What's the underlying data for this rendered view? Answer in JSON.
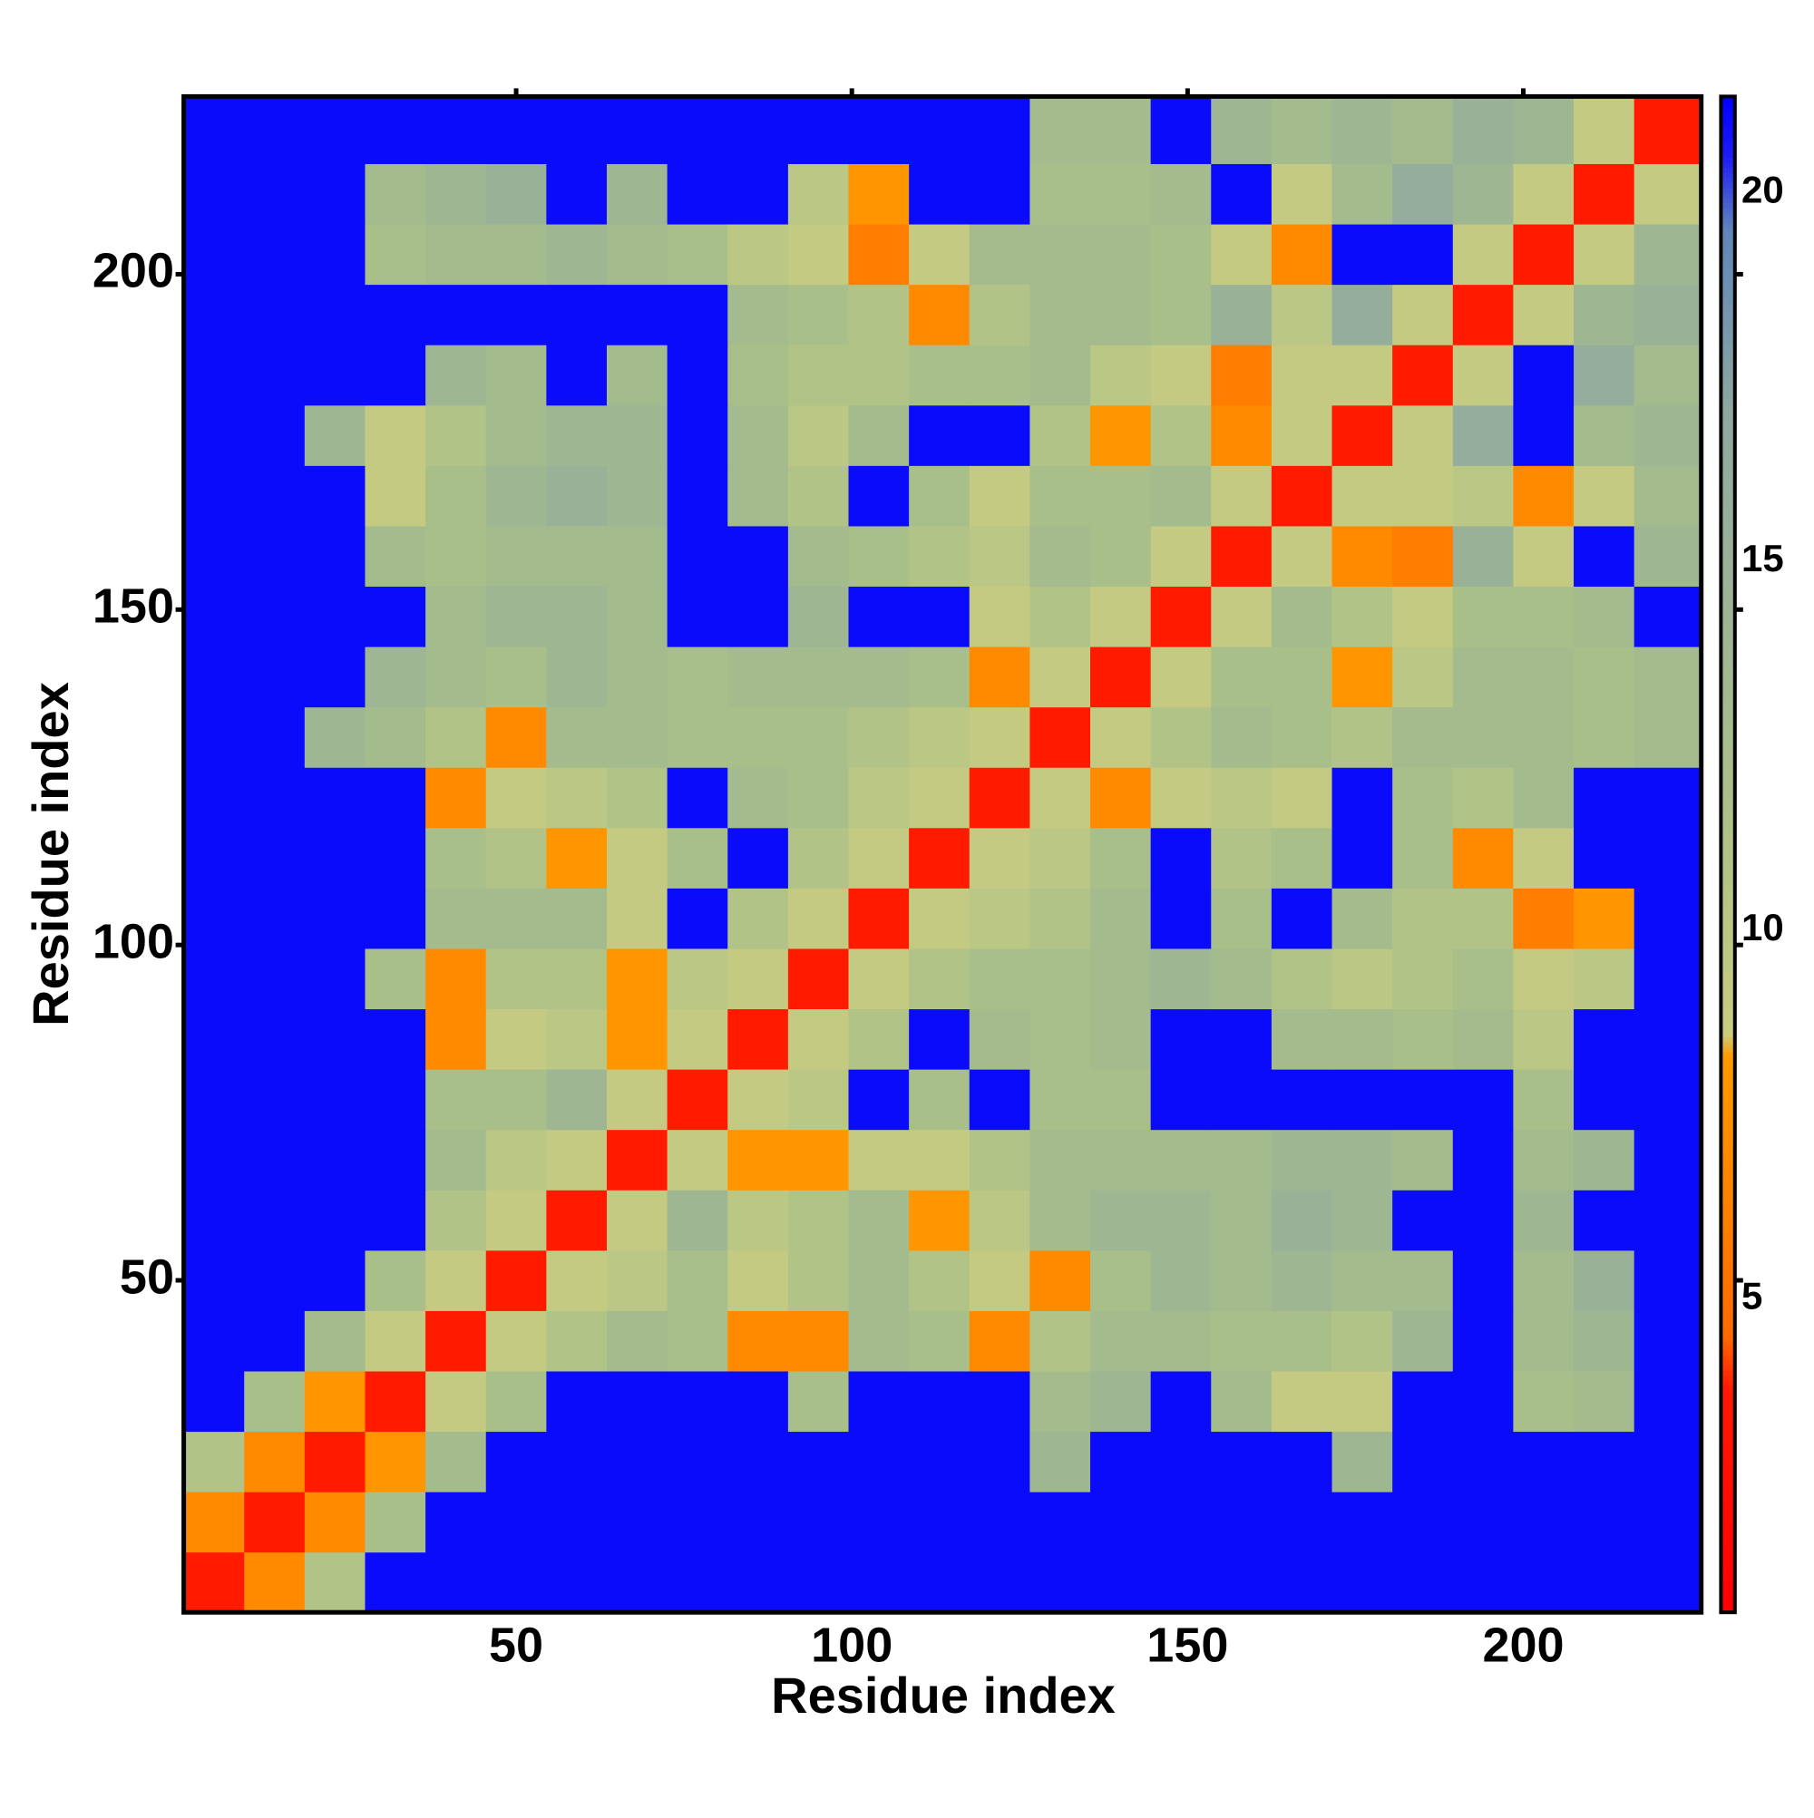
{
  "chart_data": {
    "type": "heatmap",
    "xlabel": "Residue index",
    "ylabel": "Residue index",
    "xlim": [
      0.5,
      226.5
    ],
    "ylim": [
      0.5,
      226.5
    ],
    "xticks": [
      50,
      100,
      150,
      200
    ],
    "yticks": [
      50,
      100,
      150,
      200
    ],
    "colorbar_lim": [
      0.75,
      21.3
    ],
    "colorbar_ticks": [
      5,
      10,
      15,
      20
    ],
    "colorscale": [
      [
        0.75,
        "#ff0000"
      ],
      [
        3.8,
        "#ff1a00"
      ],
      [
        4.5,
        "#ff6a00"
      ],
      [
        8.3,
        "#ff9a00"
      ],
      [
        8.6,
        "#c8cc80"
      ],
      [
        12,
        "#a9bf8a"
      ],
      [
        17,
        "#8fa9a0"
      ],
      [
        19.5,
        "#5f86ba"
      ],
      [
        20.5,
        "#1c1cf5"
      ],
      [
        21.3,
        "#0000ff"
      ]
    ],
    "xbins": [
      0.5,
      9.5,
      18.5,
      27.5,
      36.5,
      45.5,
      54.5,
      63.5,
      72.5,
      81.5,
      90.5,
      99.5,
      108.5,
      117.5,
      126.5,
      135.5,
      144.5,
      153.5,
      162.5,
      171.5,
      180.5,
      189.5,
      198.5,
      207.5,
      216.5,
      226.5
    ],
    "ybins": [
      0.5,
      9.5,
      18.5,
      27.5,
      36.5,
      45.5,
      54.5,
      63.5,
      72.5,
      81.5,
      90.5,
      99.5,
      108.5,
      117.5,
      126.5,
      135.5,
      144.5,
      153.5,
      162.5,
      171.5,
      180.5,
      189.5,
      198.5,
      207.5,
      216.5,
      226.5
    ],
    "z": [
      [
        3.8,
        7,
        11,
        21,
        21,
        21,
        21,
        21,
        21,
        21,
        21,
        21,
        21,
        21,
        21,
        21,
        21,
        21,
        21,
        21,
        21,
        21,
        21,
        21,
        21
      ],
      [
        7,
        3.8,
        7,
        12,
        21,
        21,
        21,
        21,
        21,
        21,
        21,
        21,
        21,
        21,
        21,
        21,
        21,
        21,
        21,
        21,
        21,
        21,
        21,
        21,
        21
      ],
      [
        11,
        7,
        3.8,
        8,
        13,
        21,
        21,
        21,
        21,
        21,
        21,
        21,
        21,
        21,
        14,
        21,
        21,
        21,
        21,
        14,
        21,
        21,
        21,
        21,
        21
      ],
      [
        21,
        12,
        8,
        3.8,
        9,
        12,
        21,
        21,
        21,
        21,
        12,
        21,
        21,
        21,
        13,
        14,
        21,
        13,
        9,
        9,
        21,
        21,
        12,
        13,
        21
      ],
      [
        21,
        21,
        13,
        9,
        3.8,
        9,
        11,
        13,
        12,
        7,
        7,
        13,
        12,
        7,
        11,
        13,
        13,
        12,
        12,
        11,
        14,
        21,
        13,
        14,
        21
      ],
      [
        21,
        21,
        21,
        12,
        9,
        3.8,
        9,
        10,
        12,
        9,
        11,
        13,
        11,
        9,
        7,
        12,
        14,
        13,
        14,
        13,
        13,
        21,
        13,
        15,
        21
      ],
      [
        21,
        21,
        21,
        21,
        11,
        9,
        3.8,
        9,
        14,
        10,
        11,
        13,
        8,
        10,
        13,
        14,
        14,
        13,
        15,
        14,
        21,
        21,
        14,
        21,
        21
      ],
      [
        21,
        21,
        21,
        21,
        13,
        10,
        9,
        3.8,
        9,
        8,
        8,
        9,
        9,
        11,
        13,
        13,
        13,
        13,
        14,
        14,
        13,
        21,
        13,
        14,
        21
      ],
      [
        21,
        21,
        21,
        21,
        12,
        12,
        14,
        9,
        3.8,
        9,
        10,
        21,
        12,
        21,
        12,
        12,
        21,
        21,
        21,
        21,
        21,
        21,
        12,
        21,
        21
      ],
      [
        21,
        21,
        21,
        21,
        7,
        9,
        10,
        8,
        9,
        3.8,
        9,
        11,
        21,
        13,
        12,
        13,
        21,
        21,
        13,
        13,
        12,
        13,
        10,
        21,
        21
      ],
      [
        21,
        21,
        21,
        12,
        7,
        11,
        11,
        8,
        10,
        9,
        3.8,
        9,
        11,
        12,
        12,
        13,
        14,
        13,
        11,
        10,
        11,
        12,
        9,
        10,
        21
      ],
      [
        21,
        21,
        21,
        21,
        13,
        13,
        13,
        9,
        21,
        11,
        9,
        3.8,
        9,
        10,
        11,
        13,
        21,
        12,
        21,
        13,
        11,
        11,
        6,
        8,
        21
      ],
      [
        21,
        21,
        21,
        21,
        12,
        11,
        8,
        9,
        12,
        21,
        11,
        9,
        3.8,
        9,
        10,
        12,
        21,
        11,
        12,
        21,
        12,
        7,
        9,
        21,
        21
      ],
      [
        21,
        21,
        21,
        21,
        7,
        9,
        10,
        11,
        21,
        13,
        12,
        10,
        9,
        3.8,
        9,
        7,
        9,
        10,
        9,
        21,
        12,
        11,
        13,
        21,
        21
      ],
      [
        21,
        21,
        14,
        13,
        11,
        7,
        13,
        13,
        12,
        12,
        12,
        11,
        10,
        9,
        3.8,
        9,
        11,
        13,
        12,
        11,
        13,
        13,
        13,
        12,
        13
      ],
      [
        21,
        21,
        21,
        14,
        13,
        12,
        14,
        13,
        12,
        13,
        13,
        13,
        12,
        7,
        9,
        3.8,
        9,
        12,
        12,
        8,
        10,
        13,
        13,
        12,
        13
      ],
      [
        21,
        21,
        21,
        21,
        13,
        14,
        14,
        13,
        21,
        21,
        14,
        21,
        21,
        9,
        11,
        9,
        3.8,
        9,
        13,
        11,
        9,
        12,
        12,
        13,
        21
      ],
      [
        21,
        21,
        21,
        13,
        12,
        13,
        13,
        13,
        21,
        21,
        13,
        12,
        11,
        10,
        13,
        12,
        9,
        3.8,
        9,
        7,
        6,
        15,
        9,
        21,
        14
      ],
      [
        21,
        21,
        21,
        9,
        12,
        14,
        15,
        14,
        21,
        13,
        11,
        21,
        12,
        9,
        12,
        12,
        13,
        9,
        3.8,
        9,
        9,
        10,
        7,
        9,
        13
      ],
      [
        21,
        21,
        14,
        9,
        11,
        13,
        14,
        14,
        21,
        13,
        10,
        13,
        21,
        21,
        11,
        8,
        11,
        7,
        9,
        3.8,
        9,
        16,
        21,
        13,
        14
      ],
      [
        21,
        21,
        21,
        21,
        14,
        13,
        21,
        13,
        21,
        12,
        11,
        11,
        12,
        12,
        13,
        10,
        9,
        6,
        9,
        9,
        3.8,
        9,
        21,
        16,
        13
      ],
      [
        21,
        21,
        21,
        21,
        21,
        21,
        21,
        21,
        21,
        13,
        12,
        11,
        7,
        11,
        13,
        13,
        12,
        15,
        10,
        16,
        9,
        3.8,
        9,
        14,
        15
      ],
      [
        21,
        21,
        21,
        12,
        13,
        13,
        14,
        13,
        12,
        10,
        9,
        6,
        9,
        13,
        13,
        13,
        12,
        9,
        7,
        21,
        21,
        9,
        3.8,
        9,
        14
      ],
      [
        21,
        21,
        21,
        13,
        14,
        15,
        21,
        14,
        21,
        21,
        10,
        8,
        21,
        21,
        12,
        12,
        13,
        21,
        9,
        13,
        16,
        14,
        9,
        3.8,
        9
      ],
      [
        21,
        21,
        21,
        21,
        21,
        21,
        21,
        21,
        21,
        21,
        21,
        21,
        21,
        21,
        13,
        13,
        21,
        14,
        13,
        14,
        13,
        15,
        14,
        9,
        3.8
      ]
    ]
  }
}
